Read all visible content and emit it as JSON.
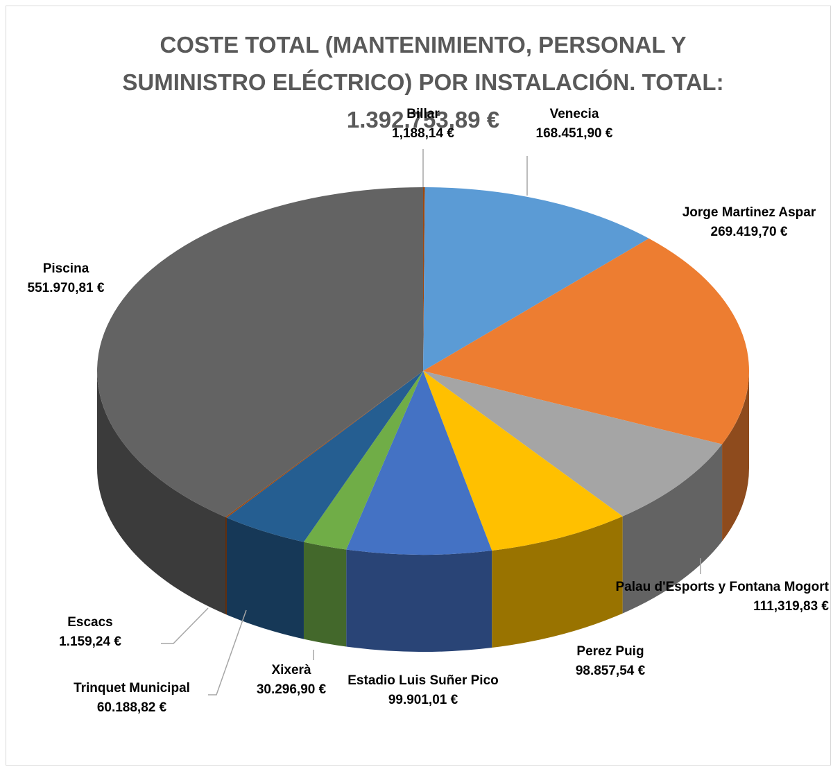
{
  "chart_data": {
    "type": "pie3d",
    "title": "COSTE TOTAL (MANTENIMIENTO, PERSONAL Y SUMINISTRO ELÉCTRICO) POR INSTALACIÓN. TOTAL: 1.392.753,89 €",
    "categories": [
      "Billar",
      "Venecia",
      "Jorge Martinez Aspar",
      "Palau d'Esports y Fontana Mogort",
      "Perez Puig",
      "Estadio Luis Suñer Pico",
      "Xixerà",
      "Trinquet Municipal",
      "Escacs",
      "Piscina"
    ],
    "values": [
      1188.14,
      168451.9,
      269419.7,
      111319.83,
      98857.54,
      99901.01,
      30296.9,
      60188.82,
      1159.24,
      551970.81
    ],
    "value_labels": [
      "1,188,14 €",
      "168.451,90 €",
      "269.419,70 €",
      "111,319,83 €",
      "98.857,54 €",
      "99.901,01 €",
      "30.296,90 €",
      "60.188,82 €",
      "1.159,24 €",
      "551.970,81 €"
    ],
    "colors": [
      "#9e480e",
      "#5b9bd5",
      "#ed7d31",
      "#a5a5a5",
      "#ffc000",
      "#4472c4",
      "#70ad47",
      "#255e91",
      "#9e480e",
      "#636363"
    ]
  }
}
